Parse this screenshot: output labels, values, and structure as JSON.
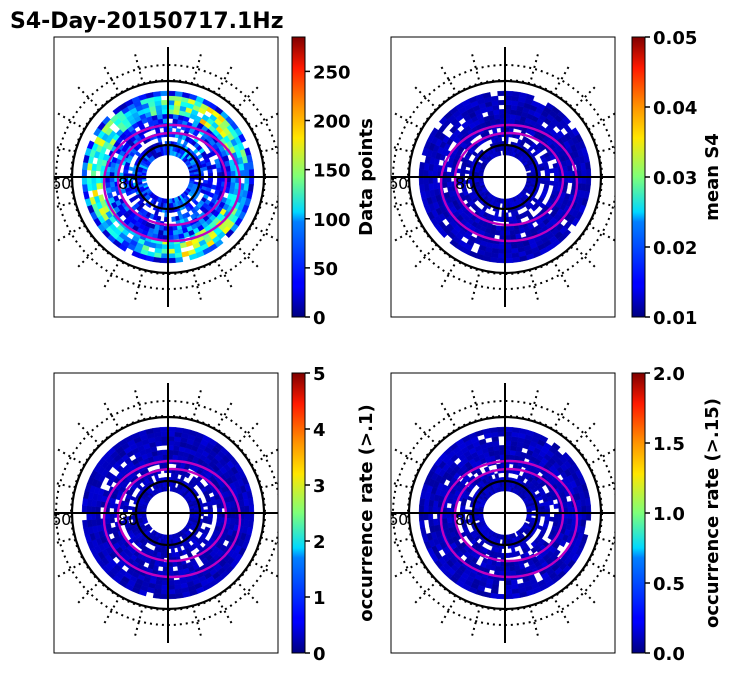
{
  "figure": {
    "title": "S4-Day-20150717.1Hz",
    "lat_labels": [
      "60",
      "80"
    ]
  },
  "chart_data": [
    {
      "type": "heatmap",
      "panel": "top-left",
      "colorbar_label": "Data points",
      "vmin": 0,
      "vmax": 285,
      "ticks": [
        0,
        50,
        100,
        150,
        200,
        250
      ],
      "tick_labels": [
        "0",
        "50",
        "100",
        "150",
        "200",
        "250"
      ],
      "colormap": "jet",
      "data_level": "high"
    },
    {
      "type": "heatmap",
      "panel": "top-right",
      "colorbar_label": "mean S4",
      "vmin": 0.01,
      "vmax": 0.05,
      "ticks": [
        0.01,
        0.02,
        0.03,
        0.04,
        0.05
      ],
      "tick_labels": [
        "0.01",
        "0.02",
        "0.03",
        "0.04",
        "0.05"
      ],
      "colormap": "jet",
      "data_level": "low"
    },
    {
      "type": "heatmap",
      "panel": "bottom-left",
      "colorbar_label": "occurrence rate (>.1)",
      "vmin": 0,
      "vmax": 5,
      "ticks": [
        0,
        1,
        2,
        3,
        4,
        5
      ],
      "tick_labels": [
        "0",
        "1",
        "2",
        "3",
        "4",
        "5"
      ],
      "colormap": "jet",
      "data_level": "low"
    },
    {
      "type": "heatmap",
      "panel": "bottom-right",
      "colorbar_label": "occurrence rate (>.15)",
      "vmin": 0,
      "vmax": 2,
      "ticks": [
        0,
        0.5,
        1,
        1.5,
        2
      ],
      "tick_labels": [
        "0.0",
        "0.5",
        "1.0",
        "1.5",
        "2.0"
      ],
      "colormap": "jet",
      "data_level": "low"
    }
  ]
}
